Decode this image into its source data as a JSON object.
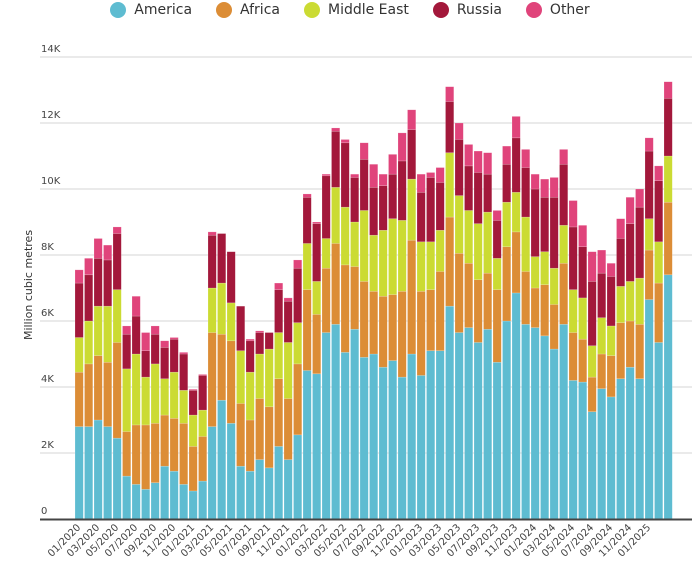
{
  "chart_data": {
    "type": "bar",
    "stacked": true,
    "title": "",
    "xlabel": "",
    "ylabel": "Million cubic metres",
    "ylim": [
      0,
      14000
    ],
    "yticks": [
      0,
      2000,
      4000,
      6000,
      8000,
      10000,
      12000,
      14000
    ],
    "ytick_labels": [
      "0",
      "2K",
      "4K",
      "6K",
      "8K",
      "10K",
      "12K",
      "14K"
    ],
    "grid": true,
    "legend_position": "top",
    "categories": [
      "01/2020",
      "02/2020",
      "03/2020",
      "04/2020",
      "05/2020",
      "06/2020",
      "07/2020",
      "08/2020",
      "09/2020",
      "10/2020",
      "11/2020",
      "12/2020",
      "01/2021",
      "02/2021",
      "03/2021",
      "04/2021",
      "05/2021",
      "06/2021",
      "07/2021",
      "08/2021",
      "09/2021",
      "10/2021",
      "11/2021",
      "12/2021",
      "01/2022",
      "02/2022",
      "03/2022",
      "04/2022",
      "05/2022",
      "06/2022",
      "07/2022",
      "08/2022",
      "09/2022",
      "10/2022",
      "11/2022",
      "12/2022",
      "01/2023",
      "02/2023",
      "03/2023",
      "04/2023",
      "05/2023",
      "06/2023",
      "07/2023",
      "08/2023",
      "09/2023",
      "10/2023",
      "11/2023",
      "12/2023",
      "01/2024",
      "02/2024",
      "03/2024",
      "04/2024",
      "05/2024",
      "06/2024",
      "07/2024",
      "08/2024",
      "09/2024",
      "10/2024",
      "11/2024",
      "12/2024",
      "01/2025",
      "02/2025",
      "03/2025"
    ],
    "xtick_labels": [
      "01/2020",
      "03/2020",
      "05/2020",
      "07/2020",
      "09/2020",
      "11/2020",
      "01/2021",
      "03/2021",
      "05/2021",
      "07/2021",
      "09/2021",
      "11/2021",
      "01/2022",
      "03/2022",
      "05/2022",
      "07/2022",
      "09/2022",
      "11/2022",
      "01/2023",
      "03/2023",
      "05/2023",
      "07/2023",
      "09/2023",
      "11/2023",
      "01/2024",
      "03/2024",
      "05/2024",
      "07/2024",
      "09/2024",
      "11/2024",
      "01/2025"
    ],
    "series": [
      {
        "name": "America",
        "color": "#5ebcd1",
        "values": [
          2800,
          2800,
          3000,
          2800,
          2450,
          1300,
          1050,
          900,
          1100,
          1600,
          1450,
          1050,
          850,
          1150,
          2800,
          3600,
          2900,
          1600,
          1450,
          1800,
          1550,
          2200,
          1800,
          2550,
          4500,
          4400,
          5650,
          5900,
          5050,
          5750,
          4900,
          5000,
          4600,
          4800,
          4300,
          5000,
          4350,
          5100,
          5100,
          6450,
          5650,
          5800,
          5350,
          5750,
          4750,
          6000,
          6850,
          5900,
          5800,
          5550,
          5150,
          5900,
          4200,
          4150,
          3250,
          3950,
          3700,
          4250,
          4600,
          4250,
          6650,
          5350,
          7400
        ]
      },
      {
        "name": "Africa",
        "color": "#dc8d36",
        "values": [
          1650,
          1900,
          1950,
          1950,
          2900,
          1350,
          1800,
          1950,
          1800,
          1550,
          1600,
          1850,
          1350,
          1350,
          2850,
          2000,
          2500,
          1900,
          1550,
          1850,
          1850,
          2050,
          1850,
          2150,
          2450,
          1800,
          1950,
          2450,
          2650,
          1900,
          2300,
          1900,
          2150,
          2000,
          2600,
          3450,
          2550,
          1850,
          2400,
          2700,
          2400,
          1950,
          1900,
          1700,
          2200,
          2250,
          1850,
          1600,
          1200,
          1550,
          1350,
          1850,
          1450,
          1300,
          1050,
          1050,
          1250,
          1700,
          1400,
          1650,
          1500,
          1800,
          2200
        ]
      },
      {
        "name": "Middle East",
        "color": "#cbdb33",
        "values": [
          1050,
          1300,
          1500,
          1700,
          1600,
          1900,
          2150,
          1450,
          1800,
          1100,
          1400,
          1000,
          950,
          800,
          1350,
          1550,
          1150,
          1600,
          1450,
          1350,
          1750,
          1400,
          1700,
          1250,
          1400,
          1000,
          900,
          1700,
          1750,
          1350,
          2150,
          1700,
          2000,
          2300,
          2150,
          1850,
          1500,
          1450,
          1250,
          1950,
          1750,
          1600,
          1700,
          1850,
          950,
          1350,
          1200,
          1650,
          950,
          1000,
          1100,
          1150,
          1300,
          1250,
          950,
          1100,
          900,
          1100,
          1200,
          1400,
          950,
          1250,
          1400
        ]
      },
      {
        "name": "Russia",
        "color": "#a3183b",
        "values": [
          1650,
          1400,
          1450,
          1400,
          1700,
          1050,
          1150,
          800,
          900,
          950,
          1000,
          1100,
          750,
          1050,
          1600,
          1500,
          1550,
          1350,
          950,
          650,
          500,
          1300,
          1250,
          1650,
          1400,
          1750,
          1900,
          1700,
          1950,
          1350,
          1550,
          1450,
          1350,
          1350,
          1800,
          1500,
          1500,
          1950,
          1450,
          1550,
          1700,
          1350,
          1550,
          1150,
          1150,
          1150,
          1650,
          1500,
          2050,
          1650,
          2150,
          1850,
          1900,
          1550,
          1950,
          1350,
          1500,
          1450,
          1750,
          2150,
          2050,
          1850,
          1750
        ]
      },
      {
        "name": "Other",
        "color": "#e0447b",
        "values": [
          400,
          500,
          600,
          450,
          200,
          250,
          600,
          550,
          250,
          200,
          50,
          50,
          30,
          30,
          100,
          0,
          0,
          0,
          50,
          50,
          0,
          200,
          100,
          250,
          100,
          50,
          50,
          100,
          100,
          100,
          500,
          700,
          350,
          600,
          850,
          600,
          550,
          150,
          450,
          450,
          500,
          650,
          650,
          650,
          300,
          550,
          650,
          550,
          450,
          550,
          600,
          450,
          800,
          650,
          900,
          700,
          400,
          600,
          800,
          550,
          400,
          450,
          500
        ]
      }
    ]
  }
}
